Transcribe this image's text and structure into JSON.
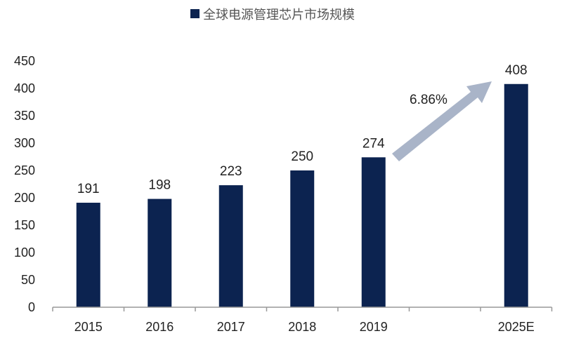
{
  "chart_data": {
    "type": "bar",
    "title": "",
    "legend": {
      "label": "全球电源管理芯片市场规模",
      "placement": "top"
    },
    "categories": [
      "2015",
      "2016",
      "2017",
      "2018",
      "2019",
      "",
      "2025E"
    ],
    "series": [
      {
        "name": "全球电源管理芯片市场规模",
        "values": [
          191,
          198,
          223,
          250,
          274,
          null,
          408
        ]
      }
    ],
    "data_labels": [
      "191",
      "198",
      "223",
      "250",
      "274",
      "",
      "408"
    ],
    "yticks": [
      0,
      50,
      100,
      150,
      200,
      250,
      300,
      350,
      400,
      450
    ],
    "ylim": [
      0,
      450
    ],
    "xlabel": "",
    "ylabel": "",
    "grid": false,
    "annotation": {
      "text": "6.86%",
      "type": "arrow",
      "from": "2019",
      "to": "2025E"
    },
    "colors": {
      "bar": "#0c2350",
      "arrow": "#a9b4c8",
      "axis": "#999999"
    }
  }
}
